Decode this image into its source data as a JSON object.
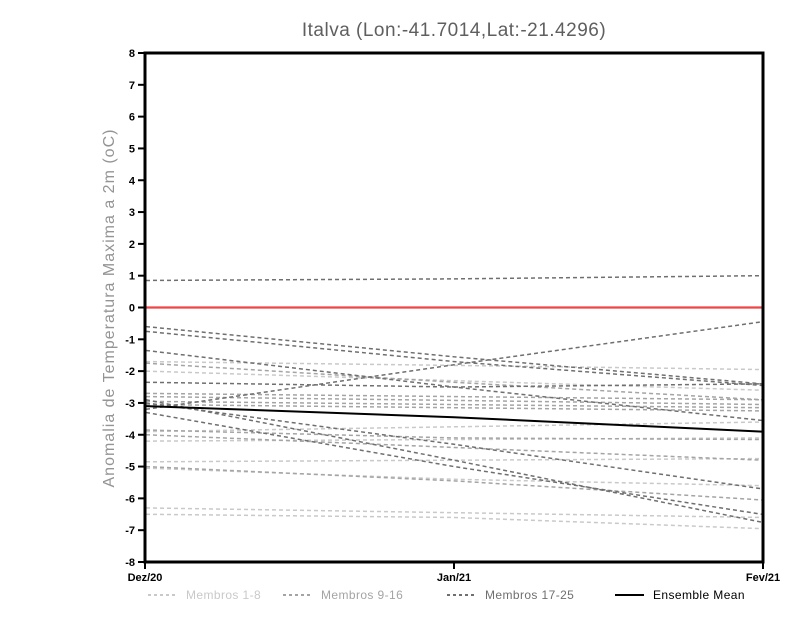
{
  "chart_data": {
    "type": "line",
    "title": "Italva (Lon:-41.7014,Lat:-21.4296)",
    "ylabel": "Anomalia de Temperatura Maxima a 2m (oC)",
    "x_categories": [
      "Dez/20",
      "Jan/21",
      "Fev/21"
    ],
    "ylim": [
      -8,
      8
    ],
    "yticks": [
      8,
      7,
      6,
      5,
      4,
      3,
      2,
      1,
      0,
      -1,
      -2,
      -3,
      -4,
      -5,
      -6,
      -7,
      -8
    ],
    "grid": false,
    "legend_position": "bottom",
    "zero_line": {
      "value": 0,
      "color": "#f04545"
    },
    "series_groups": [
      {
        "name": "Membros 1-8",
        "color": "#c9c9c9",
        "style": "dashed"
      },
      {
        "name": "Membros 9-16",
        "color": "#a4a4a4",
        "style": "dashed"
      },
      {
        "name": "Membros 17-25",
        "color": "#6f6f6f",
        "style": "dashed"
      },
      {
        "name": "Ensemble Mean",
        "color": "#000000",
        "style": "solid"
      }
    ],
    "members": [
      {
        "group": 0,
        "values": [
          -1.7,
          -1.82,
          -1.95
        ]
      },
      {
        "group": 0,
        "values": [
          -2.0,
          -2.3,
          -2.6
        ]
      },
      {
        "group": 0,
        "values": [
          -3.9,
          -3.75,
          -3.6
        ]
      },
      {
        "group": 0,
        "values": [
          -4.2,
          -4.15,
          -4.1
        ]
      },
      {
        "group": 0,
        "values": [
          -4.85,
          -4.8,
          -4.75
        ]
      },
      {
        "group": 0,
        "values": [
          -5.05,
          -5.4,
          -5.6
        ]
      },
      {
        "group": 0,
        "values": [
          -6.3,
          -6.45,
          -6.6
        ]
      },
      {
        "group": 0,
        "values": [
          -6.5,
          -6.6,
          -6.95
        ]
      },
      {
        "group": 1,
        "values": [
          -1.75,
          -2.35,
          -2.9
        ]
      },
      {
        "group": 1,
        "values": [
          -2.7,
          -2.8,
          -2.9
        ]
      },
      {
        "group": 1,
        "values": [
          -2.8,
          -2.92,
          -3.05
        ]
      },
      {
        "group": 1,
        "values": [
          -2.95,
          -3.05,
          -3.15
        ]
      },
      {
        "group": 1,
        "values": [
          -3.05,
          -3.15,
          -3.25
        ]
      },
      {
        "group": 1,
        "values": [
          -3.85,
          -4.1,
          -4.15
        ]
      },
      {
        "group": 1,
        "values": [
          -4.0,
          -4.4,
          -4.8
        ]
      },
      {
        "group": 1,
        "values": [
          -5.0,
          -5.45,
          -6.05
        ]
      },
      {
        "group": 2,
        "values": [
          0.85,
          0.9,
          1.0
        ]
      },
      {
        "group": 2,
        "values": [
          -0.6,
          -1.55,
          -2.4
        ]
      },
      {
        "group": 2,
        "values": [
          -0.75,
          -1.7,
          -2.45
        ]
      },
      {
        "group": 2,
        "values": [
          -1.35,
          -2.5,
          -3.55
        ]
      },
      {
        "group": 2,
        "values": [
          -2.35,
          -2.5,
          -2.4
        ]
      },
      {
        "group": 2,
        "values": [
          -3.2,
          -1.8,
          -0.45
        ]
      },
      {
        "group": 2,
        "values": [
          -3.0,
          -4.3,
          -5.7
        ]
      },
      {
        "group": 2,
        "values": [
          -3.3,
          -5.0,
          -6.5
        ]
      },
      {
        "group": 2,
        "values": [
          -2.9,
          -4.8,
          -6.75
        ]
      }
    ],
    "ensemble_mean_values": [
      -3.1,
      -3.45,
      -3.9
    ]
  }
}
